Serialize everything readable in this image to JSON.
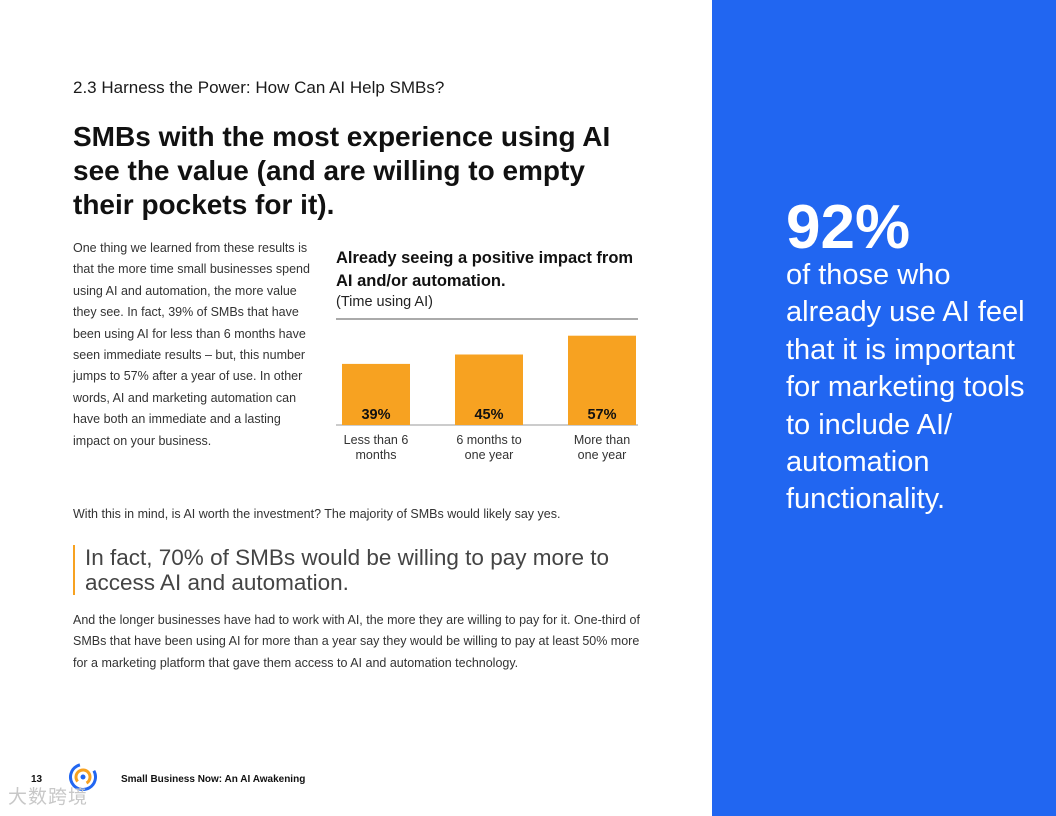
{
  "section_label": "2.3 Harness the Power: How Can AI Help SMBs?",
  "headline": "SMBs with the most experience using AI see the value (and are willing to empty their pockets for it).",
  "body_paragraph": "One thing we learned from these results is that the more time small businesses spend using AI and automation, the more value they see. In fact, 39% of SMBs that have been using AI for less than 6 months have seen immediate results – but, this number jumps to 57% after a year of use. In other words, AI and marketing automation can have both an immediate and a lasting impact on your business.",
  "chart_title": "Already seeing a positive impact from AI and/or automation.",
  "chart_subtitle": "(Time using AI)",
  "chart_data": {
    "type": "bar",
    "title": "Already seeing a positive impact from AI and/or automation.",
    "subtitle": "(Time using AI)",
    "categories": [
      "Less than 6 months",
      "6 months to one year",
      "More than one year"
    ],
    "category_lines": [
      [
        "Less than 6",
        "months"
      ],
      [
        "6 months to",
        "one year"
      ],
      [
        "More than",
        "one year"
      ]
    ],
    "values": [
      39,
      45,
      57
    ],
    "value_labels": [
      "39%",
      "45%",
      "57%"
    ],
    "ylim": [
      0,
      60
    ],
    "bar_color": "#F7A221",
    "xlabel": "",
    "ylabel": ""
  },
  "paragraph_2": "With this in mind, is AI worth the investment? The majority of SMBs would likely say yes.",
  "pull_quote": "In fact, 70% of SMBs would be willing to pay more to access AI and automation.",
  "paragraph_3": "And the longer businesses have had to work with AI, the more they are willing to pay for it. One-third of SMBs that have been using AI for more than a year say they would be willing to pay at least 50% more for a marketing platform that gave them access to AI and automation technology.",
  "footer": {
    "page_number": "13",
    "doc_title": "Small Business Now: An AI Awakening",
    "logo_icon": "constant-contact-logo-icon"
  },
  "watermark": "大数跨境",
  "side_panel": {
    "stat": "92%",
    "stat_text": "of those who already use AI feel that it is important for marketing tools to include AI/ automation functionality.",
    "background": "#2166F1"
  },
  "colors": {
    "accent_orange": "#F7A221",
    "brand_blue": "#2166F1"
  }
}
